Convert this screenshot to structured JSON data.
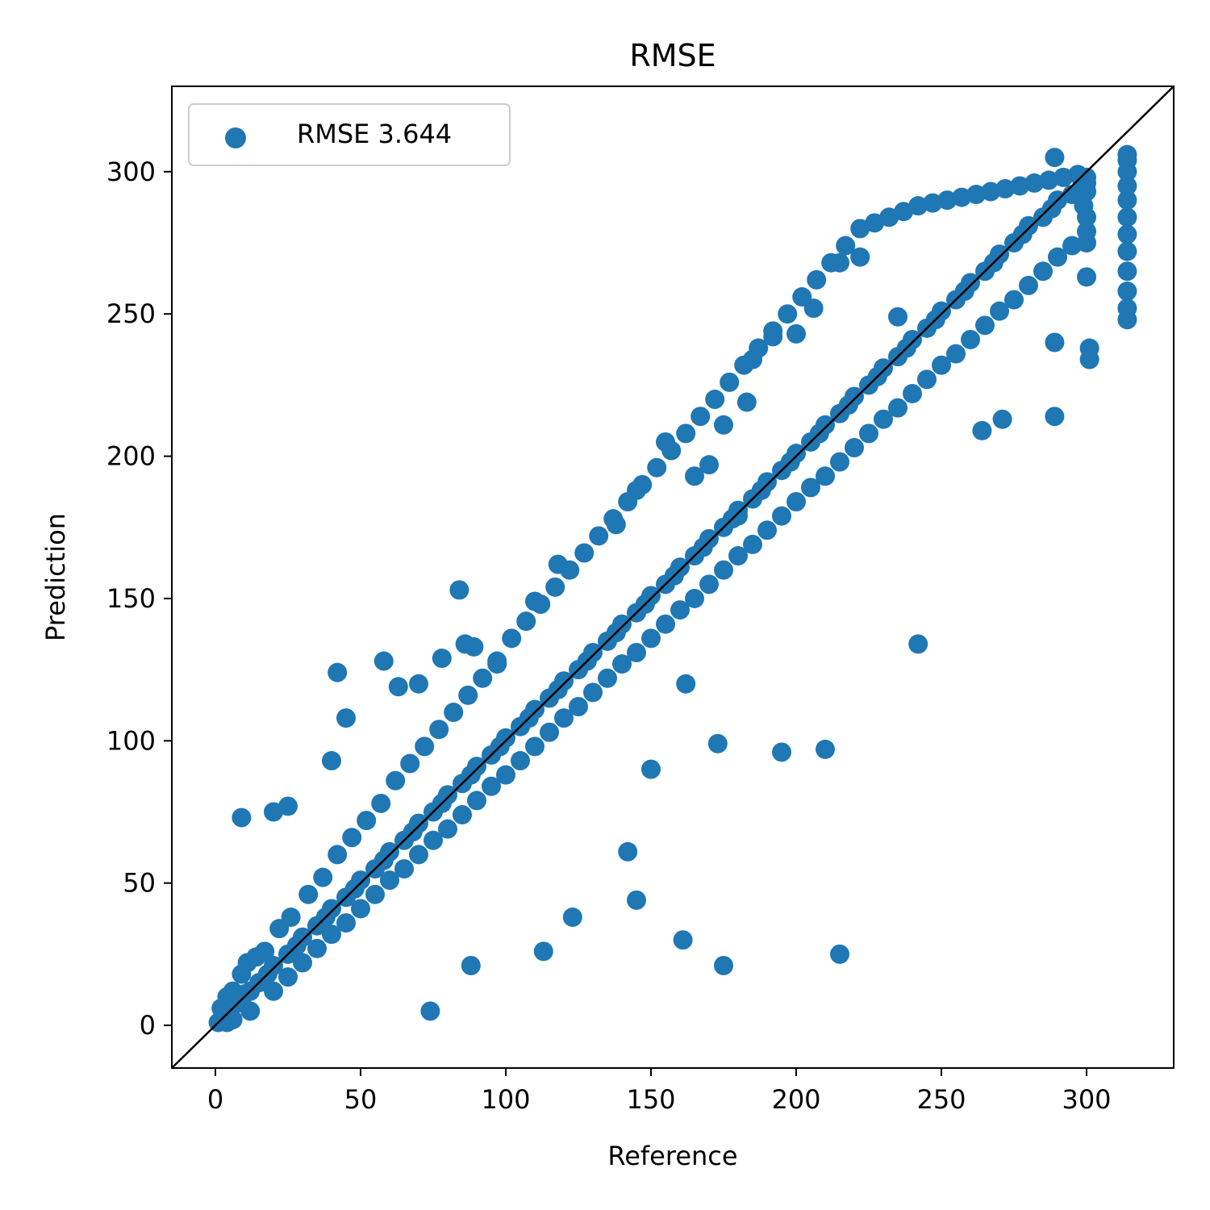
{
  "chart_data": {
    "type": "scatter",
    "title": "RMSE",
    "xlabel": "Reference",
    "ylabel": "Prediction",
    "xlim": [
      -15,
      330
    ],
    "ylim": [
      -15,
      330
    ],
    "xticks": [
      0,
      50,
      100,
      150,
      200,
      250,
      300
    ],
    "yticks": [
      0,
      50,
      100,
      150,
      200,
      250,
      300
    ],
    "grid": false,
    "legend_position": "upper-left",
    "series": [
      {
        "name": "RMSE 3.644",
        "color": "#1f77b4",
        "x": [
          1,
          3,
          5,
          8,
          10,
          12,
          15,
          18,
          20,
          25,
          28,
          30,
          35,
          38,
          40,
          45,
          48,
          50,
          55,
          58,
          60,
          65,
          68,
          70,
          75,
          78,
          80,
          85,
          88,
          90,
          95,
          98,
          100,
          105,
          108,
          110,
          115,
          118,
          120,
          125,
          128,
          130,
          135,
          138,
          140,
          145,
          148,
          150,
          155,
          158,
          160,
          165,
          168,
          170,
          175,
          178,
          180,
          185,
          188,
          190,
          195,
          198,
          200,
          205,
          208,
          210,
          215,
          218,
          220,
          225,
          228,
          230,
          235,
          238,
          240,
          245,
          248,
          250,
          255,
          258,
          260,
          265,
          268,
          270,
          275,
          278,
          280,
          285,
          288,
          290,
          295,
          298,
          300,
          2,
          4,
          6,
          9,
          11,
          14,
          17,
          22,
          26,
          32,
          37,
          42,
          47,
          52,
          57,
          62,
          67,
          72,
          77,
          82,
          87,
          92,
          97,
          102,
          107,
          112,
          117,
          122,
          127,
          132,
          137,
          142,
          147,
          152,
          157,
          162,
          167,
          172,
          177,
          182,
          187,
          192,
          197,
          202,
          207,
          212,
          217,
          222,
          227,
          232,
          237,
          242,
          247,
          252,
          257,
          262,
          267,
          272,
          277,
          282,
          287,
          292,
          297,
          9,
          4,
          6,
          12,
          20,
          25,
          30,
          35,
          40,
          45,
          50,
          55,
          60,
          65,
          70,
          75,
          80,
          85,
          90,
          95,
          100,
          105,
          110,
          115,
          120,
          125,
          130,
          135,
          140,
          145,
          150,
          155,
          160,
          165,
          170,
          175,
          180,
          185,
          190,
          195,
          200,
          205,
          210,
          215,
          220,
          225,
          230,
          235,
          240,
          245,
          250,
          255,
          260,
          265,
          270,
          275,
          280,
          285,
          290,
          295,
          300,
          20,
          25,
          40,
          42,
          45,
          58,
          63,
          70,
          78,
          86,
          89,
          84,
          97,
          110,
          118,
          145,
          155,
          138,
          165,
          170,
          175,
          183,
          185,
          192,
          200,
          206,
          215,
          222,
          150,
          162,
          173,
          195,
          210,
          123,
          142,
          145,
          161,
          175,
          215,
          74,
          88,
          113,
          242,
          289,
          264,
          271,
          180,
          235,
          300,
          300,
          300,
          300,
          300,
          314,
          314,
          314,
          314,
          314,
          314,
          314,
          314,
          314,
          314,
          314,
          314,
          289,
          289,
          301,
          301,
          299
        ],
        "y": [
          1,
          4,
          5,
          8,
          11,
          12,
          15,
          18,
          21,
          25,
          28,
          31,
          35,
          38,
          41,
          45,
          48,
          51,
          55,
          58,
          61,
          65,
          68,
          71,
          75,
          78,
          81,
          85,
          88,
          91,
          95,
          98,
          101,
          105,
          108,
          111,
          115,
          118,
          121,
          125,
          128,
          131,
          135,
          138,
          141,
          145,
          148,
          151,
          155,
          158,
          161,
          165,
          168,
          171,
          175,
          178,
          181,
          185,
          188,
          191,
          195,
          198,
          201,
          205,
          208,
          211,
          215,
          218,
          221,
          225,
          228,
          231,
          235,
          238,
          241,
          245,
          248,
          251,
          255,
          258,
          261,
          265,
          268,
          271,
          275,
          278,
          281,
          284,
          287,
          290,
          292,
          294,
          296,
          6,
          10,
          12,
          18,
          22,
          24,
          26,
          34,
          38,
          46,
          52,
          60,
          66,
          72,
          78,
          86,
          92,
          98,
          104,
          110,
          116,
          122,
          128,
          136,
          142,
          148,
          154,
          160,
          166,
          172,
          178,
          184,
          190,
          196,
          202,
          208,
          214,
          220,
          226,
          232,
          238,
          244,
          250,
          256,
          262,
          268,
          274,
          280,
          282,
          284,
          286,
          288,
          289,
          290,
          291,
          292,
          293,
          294,
          295,
          296,
          297,
          298,
          299,
          73,
          1,
          2,
          5,
          12,
          17,
          22,
          27,
          32,
          36,
          41,
          46,
          51,
          55,
          60,
          65,
          69,
          74,
          79,
          84,
          88,
          93,
          98,
          103,
          108,
          112,
          117,
          122,
          127,
          131,
          136,
          141,
          146,
          150,
          155,
          160,
          165,
          169,
          174,
          179,
          184,
          189,
          193,
          198,
          203,
          208,
          213,
          217,
          222,
          227,
          232,
          236,
          241,
          246,
          251,
          255,
          260,
          265,
          270,
          274,
          279,
          75,
          77,
          93,
          124,
          108,
          128,
          119,
          120,
          129,
          134,
          133,
          153,
          127,
          149,
          162,
          188,
          205,
          176,
          193,
          197,
          211,
          219,
          234,
          242,
          243,
          252,
          268,
          270,
          90,
          120,
          99,
          96,
          97,
          38,
          61,
          44,
          30,
          21,
          25,
          5,
          21,
          26,
          134,
          214,
          209,
          213,
          179,
          249,
          263,
          275,
          284,
          293,
          298,
          248,
          252,
          258,
          265,
          272,
          278,
          284,
          290,
          295,
          300,
          304,
          306,
          240,
          305,
          238,
          234,
          288
        ]
      }
    ],
    "reference_line": {
      "from": [
        -15,
        -15
      ],
      "to": [
        330,
        330
      ],
      "color": "#000000"
    }
  }
}
